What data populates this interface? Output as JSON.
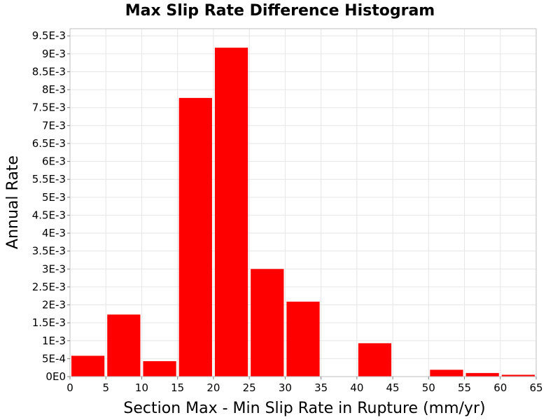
{
  "chart_data": {
    "type": "bar",
    "title": "Max Slip Rate Difference Histogram",
    "xlabel": "Section Max - Min Slip Rate in Rupture (mm/yr)",
    "ylabel": "Annual Rate",
    "xlim": [
      0,
      65
    ],
    "ylim": [
      0,
      0.0097
    ],
    "bar_color": "#ff0000",
    "grid": true,
    "bin_width": 5,
    "series": [
      {
        "bins": [
          {
            "x0": 0,
            "x1": 5,
            "value": 0.00058
          },
          {
            "x0": 5,
            "x1": 10,
            "value": 0.00173
          },
          {
            "x0": 10,
            "x1": 15,
            "value": 0.00043
          },
          {
            "x0": 15,
            "x1": 20,
            "value": 0.00777
          },
          {
            "x0": 20,
            "x1": 25,
            "value": 0.00917
          },
          {
            "x0": 25,
            "x1": 30,
            "value": 0.003
          },
          {
            "x0": 30,
            "x1": 35,
            "value": 0.00209
          },
          {
            "x0": 35,
            "x1": 40,
            "value": 0
          },
          {
            "x0": 40,
            "x1": 45,
            "value": 0.00093
          },
          {
            "x0": 45,
            "x1": 50,
            "value": 0
          },
          {
            "x0": 50,
            "x1": 55,
            "value": 0.00019
          },
          {
            "x0": 55,
            "x1": 60,
            "value": 0.0001
          },
          {
            "x0": 60,
            "x1": 65,
            "value": 5e-05
          }
        ]
      }
    ],
    "x_ticks": [
      {
        "value": 0,
        "label": "0"
      },
      {
        "value": 5,
        "label": "5"
      },
      {
        "value": 10,
        "label": "10"
      },
      {
        "value": 15,
        "label": "15"
      },
      {
        "value": 20,
        "label": "20"
      },
      {
        "value": 25,
        "label": "25"
      },
      {
        "value": 30,
        "label": "30"
      },
      {
        "value": 35,
        "label": "35"
      },
      {
        "value": 40,
        "label": "40"
      },
      {
        "value": 45,
        "label": "45"
      },
      {
        "value": 50,
        "label": "50"
      },
      {
        "value": 55,
        "label": "55"
      },
      {
        "value": 60,
        "label": "60"
      },
      {
        "value": 65,
        "label": "65"
      }
    ],
    "y_ticks": [
      {
        "value": 0,
        "label": "0E0"
      },
      {
        "value": 0.0005,
        "label": "5E-4"
      },
      {
        "value": 0.001,
        "label": "1E-3"
      },
      {
        "value": 0.0015,
        "label": "1.5E-3"
      },
      {
        "value": 0.002,
        "label": "2E-3"
      },
      {
        "value": 0.0025,
        "label": "2.5E-3"
      },
      {
        "value": 0.003,
        "label": "3E-3"
      },
      {
        "value": 0.0035,
        "label": "3.5E-3"
      },
      {
        "value": 0.004,
        "label": "4E-3"
      },
      {
        "value": 0.0045,
        "label": "4.5E-3"
      },
      {
        "value": 0.005,
        "label": "5E-3"
      },
      {
        "value": 0.0055,
        "label": "5.5E-3"
      },
      {
        "value": 0.006,
        "label": "6E-3"
      },
      {
        "value": 0.0065,
        "label": "6.5E-3"
      },
      {
        "value": 0.007,
        "label": "7E-3"
      },
      {
        "value": 0.0075,
        "label": "7.5E-3"
      },
      {
        "value": 0.008,
        "label": "8E-3"
      },
      {
        "value": 0.0085,
        "label": "8.5E-3"
      },
      {
        "value": 0.009,
        "label": "9E-3"
      },
      {
        "value": 0.0095,
        "label": "9.5E-3"
      }
    ]
  }
}
